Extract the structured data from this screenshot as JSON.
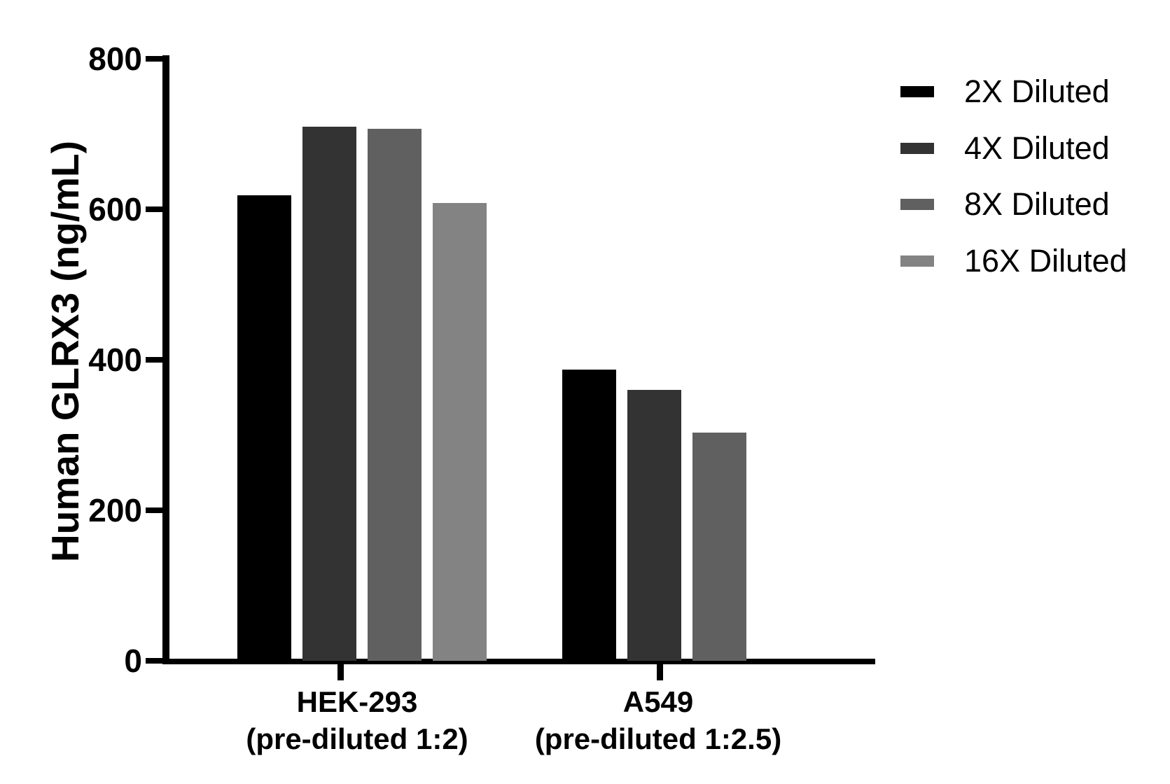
{
  "chart_data": {
    "type": "bar",
    "title": "",
    "ylabel": "Human GLRX3 (ng/mL)",
    "xlabel": "",
    "ylim": [
      0,
      800
    ],
    "yticks": [
      0,
      200,
      400,
      600,
      800
    ],
    "grid": false,
    "axis_color": "#000000",
    "background_color": "#ffffff",
    "legend_position": "top-right",
    "categories": [
      {
        "line1": "HEK-293",
        "line2": "(pre-diluted 1:2)"
      },
      {
        "line1": "A549",
        "line2": "(pre-diluted 1:2.5)"
      }
    ],
    "series": [
      {
        "name": "2X Diluted",
        "color": "#000000",
        "values": [
          619,
          387
        ]
      },
      {
        "name": "4X Diluted",
        "color": "#333333",
        "values": [
          710,
          360
        ]
      },
      {
        "name": "8X Diluted",
        "color": "#606060",
        "values": [
          707,
          303
        ]
      },
      {
        "name": "16X Diluted",
        "color": "#838383",
        "values": [
          608,
          null
        ]
      }
    ]
  }
}
